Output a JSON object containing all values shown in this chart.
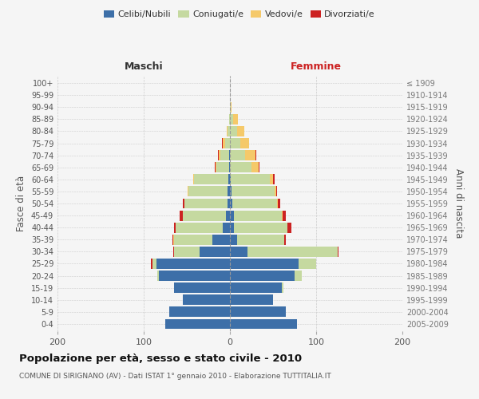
{
  "age_groups": [
    "0-4",
    "5-9",
    "10-14",
    "15-19",
    "20-24",
    "25-29",
    "30-34",
    "35-39",
    "40-44",
    "45-49",
    "50-54",
    "55-59",
    "60-64",
    "65-69",
    "70-74",
    "75-79",
    "80-84",
    "85-89",
    "90-94",
    "95-99",
    "100+"
  ],
  "birth_years": [
    "2005-2009",
    "2000-2004",
    "1995-1999",
    "1990-1994",
    "1985-1989",
    "1980-1984",
    "1975-1979",
    "1970-1974",
    "1965-1969",
    "1960-1964",
    "1955-1959",
    "1950-1954",
    "1945-1949",
    "1940-1944",
    "1935-1939",
    "1930-1934",
    "1925-1929",
    "1920-1924",
    "1915-1919",
    "1910-1914",
    "≤ 1909"
  ],
  "colors": {
    "celibi": "#3d6fa8",
    "coniugati": "#c5d9a0",
    "vedovi": "#f5c96a",
    "divorziati": "#cc2222"
  },
  "males": {
    "celibi": [
      75,
      70,
      55,
      65,
      82,
      85,
      35,
      20,
      8,
      5,
      3,
      3,
      2,
      1,
      1,
      0,
      0,
      0,
      0,
      0,
      0
    ],
    "coniugati": [
      0,
      0,
      0,
      0,
      2,
      5,
      30,
      45,
      55,
      50,
      50,
      45,
      40,
      15,
      10,
      6,
      3,
      1,
      0,
      0,
      0
    ],
    "vedovi": [
      0,
      0,
      0,
      0,
      0,
      0,
      0,
      1,
      0,
      0,
      0,
      1,
      1,
      1,
      2,
      2,
      1,
      0,
      0,
      0,
      0
    ],
    "divorziati": [
      0,
      0,
      0,
      0,
      0,
      2,
      1,
      1,
      2,
      3,
      2,
      0,
      0,
      1,
      1,
      1,
      0,
      0,
      0,
      0,
      0
    ]
  },
  "females": {
    "nubili": [
      78,
      65,
      50,
      60,
      75,
      80,
      20,
      8,
      5,
      5,
      3,
      2,
      1,
      0,
      0,
      0,
      0,
      0,
      0,
      0,
      0
    ],
    "coniugate": [
      0,
      0,
      0,
      2,
      8,
      20,
      105,
      55,
      62,
      55,
      52,
      50,
      45,
      25,
      18,
      12,
      8,
      4,
      1,
      0,
      0
    ],
    "vedove": [
      0,
      0,
      0,
      0,
      0,
      0,
      0,
      0,
      0,
      1,
      1,
      2,
      4,
      8,
      12,
      10,
      9,
      5,
      1,
      0,
      0
    ],
    "divorziate": [
      0,
      0,
      0,
      0,
      0,
      0,
      1,
      2,
      4,
      4,
      2,
      1,
      2,
      1,
      1,
      0,
      0,
      0,
      0,
      0,
      0
    ]
  },
  "title": "Popolazione per età, sesso e stato civile - 2010",
  "subtitle": "COMUNE DI SIRIGNANO (AV) - Dati ISTAT 1° gennaio 2010 - Elaborazione TUTTITALIA.IT",
  "xlabel_left": "Maschi",
  "xlabel_right": "Femmine",
  "ylabel_left": "Fasce di età",
  "ylabel_right": "Anni di nascita",
  "xlim": 200,
  "legend_labels": [
    "Celibi/Nubili",
    "Coniugati/e",
    "Vedovi/e",
    "Divorziati/e"
  ],
  "bg_color": "#f5f5f5",
  "plot_bg": "#f5f5f5",
  "grid_color": "#cccccc"
}
